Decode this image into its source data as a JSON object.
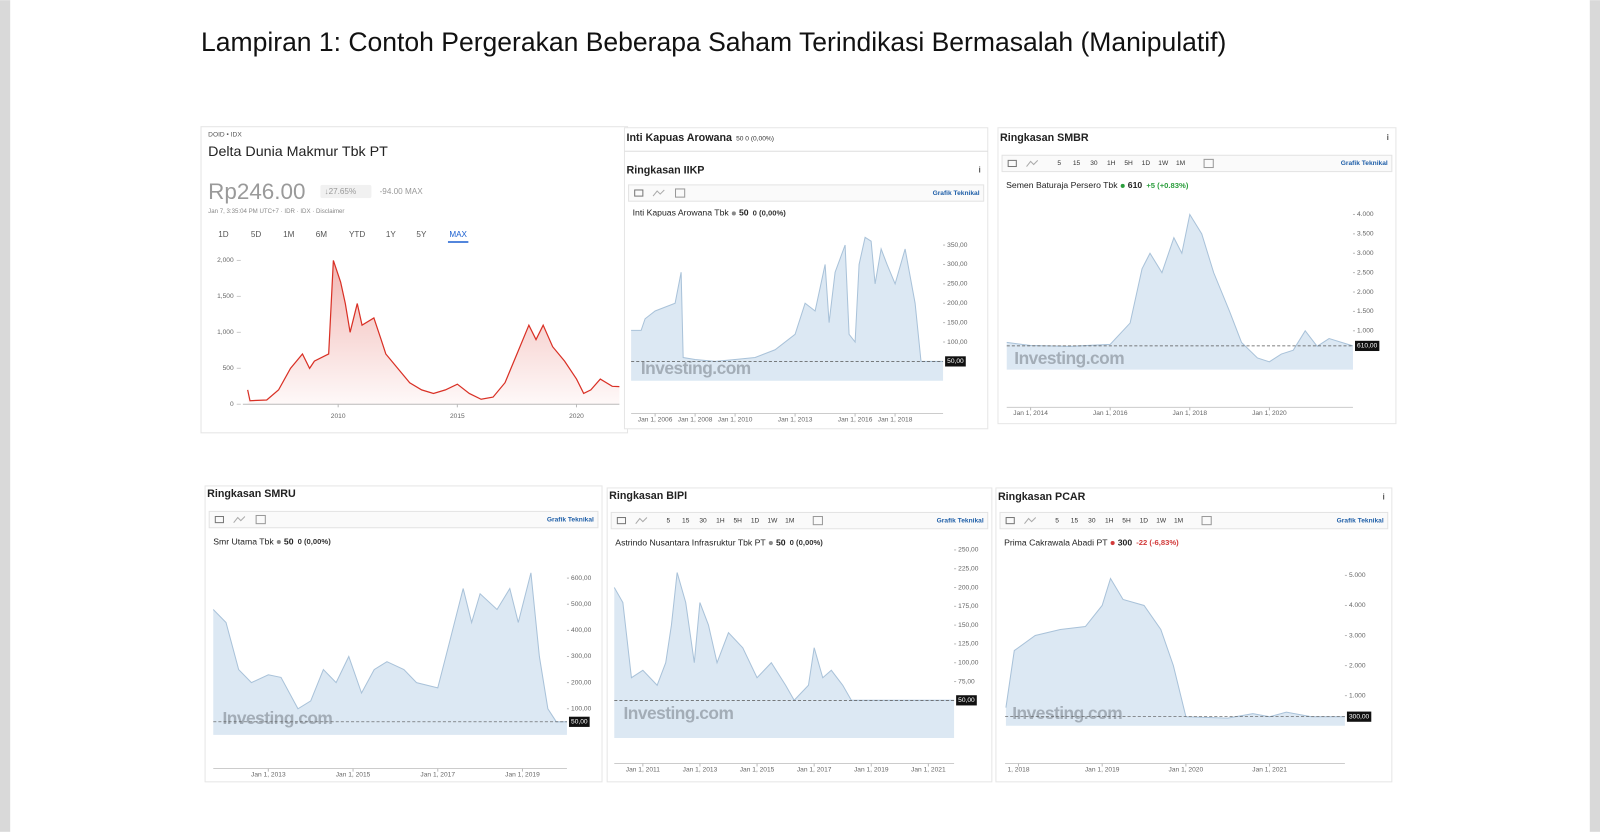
{
  "title": "Lampiran 1: Contoh Pergerakan Beberapa Saham Terindikasi Bermasalah (Manipulatif)",
  "chart_data": [
    {
      "type": "line",
      "exchange": "DOID • IDX",
      "name": "Delta Dunia Makmur Tbk PT",
      "price": "Rp246.00",
      "change": "↓27.65%",
      "change_abs": "-94.00 MAX",
      "meta": "Jan 7, 3:35:04 PM UTC+7 · IDR · IDX · Disclaimer",
      "ranges": [
        "1D",
        "5D",
        "1M",
        "6M",
        "YTD",
        "1Y",
        "5Y",
        "MAX"
      ],
      "selected_range": 7,
      "color": "#d93025",
      "x": [
        2006.2,
        2006.3,
        2007,
        2007.5,
        2008,
        2008.5,
        2008.8,
        2009,
        2009.6,
        2009.8,
        2010.1,
        2010.3,
        2010.5,
        2010.8,
        2011,
        2011.5,
        2011.8,
        2012,
        2012.5,
        2013,
        2013.5,
        2014,
        2014.5,
        2015,
        2015.5,
        2016,
        2016.5,
        2017,
        2017.5,
        2018,
        2018.3,
        2018.6,
        2019,
        2019.5,
        2020,
        2020.3,
        2020.6,
        2021,
        2021.5,
        2021.8
      ],
      "values": [
        200,
        50,
        60,
        200,
        500,
        700,
        500,
        600,
        700,
        2000,
        1700,
        1400,
        1000,
        1400,
        1100,
        1200,
        900,
        700,
        500,
        300,
        200,
        150,
        200,
        280,
        150,
        70,
        100,
        300,
        700,
        1100,
        900,
        1100,
        800,
        600,
        350,
        150,
        200,
        350,
        250,
        246
      ],
      "xlim": [
        2006,
        2021.8
      ],
      "ylim": [
        0,
        2100
      ],
      "xticks": [
        2010,
        2015,
        2020
      ],
      "yticks": [
        0,
        500,
        {
          "value": 1000,
          "label": "1,000"
        },
        {
          "value": 1500,
          "label": "1,500"
        },
        {
          "value": 2000,
          "label": "2,000"
        }
      ]
    },
    {
      "type": "area",
      "header": "Inti Kapuas Arowana",
      "header_quote": "50 0 (0,00%)",
      "title": "Ringkasan IIKP",
      "info": "i",
      "intervals": [],
      "tool_link": "Grafik Teknikal",
      "legend": "Inti Kapuas Arowana Tbk",
      "price": 50,
      "change": "0 (0,00%)",
      "change_color": "#333333",
      "watermark": "Investing.com",
      "color": "#a9c2d9",
      "x": [
        2004.8,
        2005.3,
        2005.5,
        2006,
        2007,
        2007.3,
        2007.4,
        2008,
        2009,
        2010,
        2011,
        2012,
        2013,
        2013.5,
        2014,
        2014.5,
        2014.7,
        2015,
        2015.5,
        2015.7,
        2016,
        2016.2,
        2016.5,
        2016.8,
        2017,
        2017.3,
        2017.6,
        2018,
        2018.5,
        2019,
        2019.3,
        2020.4
      ],
      "values": [
        130,
        130,
        160,
        180,
        200,
        280,
        60,
        55,
        50,
        55,
        60,
        80,
        120,
        200,
        180,
        300,
        150,
        280,
        350,
        120,
        100,
        300,
        370,
        360,
        250,
        340,
        300,
        250,
        340,
        200,
        50,
        50
      ],
      "last": {
        "value": 50,
        "label": "50,00"
      },
      "xlim": [
        2004.8,
        2020.4
      ],
      "ylim": [
        0,
        380
      ],
      "xticks": [
        {
          "value": 2006,
          "label": "Jan 1, 2006"
        },
        {
          "value": 2008,
          "label": "Jan 1, 2008"
        },
        {
          "value": 2010,
          "label": "Jan 1, 2010"
        },
        {
          "value": 2013,
          "label": "Jan 1, 2013"
        },
        {
          "value": 2016,
          "label": "Jan 1, 2016"
        },
        {
          "value": 2018,
          "label": "Jan 1, 2018"
        }
      ],
      "yticks": [
        {
          "value": 100,
          "label": "100,00"
        },
        {
          "value": 150,
          "label": "150,00"
        },
        {
          "value": 200,
          "label": "200,00"
        },
        {
          "value": 250,
          "label": "250,00"
        },
        {
          "value": 300,
          "label": "300,00"
        },
        {
          "value": 350,
          "label": "350,00"
        }
      ]
    },
    {
      "type": "area",
      "title": "Ringkasan SMBR",
      "info": "i",
      "intervals": [
        "5",
        "15",
        "30",
        "1H",
        "5H",
        "1D",
        "1W",
        "1M"
      ],
      "tool_link": "Grafik Teknikal",
      "legend": "Semen Baturaja Persero Tbk",
      "price": 610,
      "change": "+5 (+0.83%)",
      "change_color": "#2a9d3c",
      "watermark": "Investing.com",
      "color": "#a9c2d9",
      "x": [
        2013.4,
        2014,
        2015,
        2016,
        2016.5,
        2016.8,
        2017,
        2017.3,
        2017.6,
        2017.8,
        2018,
        2018.3,
        2018.6,
        2019,
        2019.3,
        2019.7,
        2020,
        2020.3,
        2020.6,
        2020.9,
        2021.2,
        2021.5,
        2022.1
      ],
      "values": [
        700,
        620,
        600,
        650,
        1200,
        2600,
        3000,
        2500,
        3400,
        3000,
        4000,
        3500,
        2500,
        1500,
        700,
        300,
        200,
        400,
        500,
        1000,
        600,
        800,
        610
      ],
      "last": {
        "value": 610,
        "label": "610,00"
      },
      "xlim": [
        2013.4,
        2022.1
      ],
      "ylim": [
        0,
        4500
      ],
      "xticks": [
        {
          "value": 2014,
          "label": "Jan 1, 2014"
        },
        {
          "value": 2016,
          "label": "Jan 1, 2016"
        },
        {
          "value": 2018,
          "label": "Jan 1, 2018"
        },
        {
          "value": 2020,
          "label": "Jan 1, 2020"
        }
      ],
      "yticks": [
        {
          "value": 1000,
          "label": "1.000"
        },
        {
          "value": 1500,
          "label": "1.500"
        },
        {
          "value": 2000,
          "label": "2.000"
        },
        {
          "value": 2500,
          "label": "2.500"
        },
        {
          "value": 3000,
          "label": "3.000"
        },
        {
          "value": 3500,
          "label": "3.500"
        },
        {
          "value": 4000,
          "label": "4.000"
        }
      ]
    },
    {
      "type": "area",
      "title": "Ringkasan SMRU",
      "intervals": [],
      "tool_link": "Grafik Teknikal",
      "legend": "Smr Utama Tbk",
      "price": 50,
      "change": "0 (0,00%)",
      "change_color": "#333333",
      "watermark": "Investing.com",
      "color": "#a9c2d9",
      "x": [
        2011.7,
        2012,
        2012.3,
        2012.6,
        2013,
        2013.3,
        2013.7,
        2014,
        2014.3,
        2014.6,
        2014.9,
        2015.2,
        2015.5,
        2015.8,
        2016.2,
        2016.5,
        2017,
        2017.3,
        2017.6,
        2017.8,
        2018,
        2018.4,
        2018.7,
        2018.9,
        2019.2,
        2019.4,
        2019.6,
        2019.8,
        2020.05
      ],
      "values": [
        480,
        430,
        250,
        200,
        230,
        220,
        100,
        130,
        250,
        200,
        300,
        160,
        250,
        280,
        250,
        200,
        180,
        370,
        560,
        430,
        540,
        480,
        560,
        430,
        620,
        300,
        100,
        50,
        50
      ],
      "last": {
        "value": 50,
        "label": "50,00"
      },
      "xlim": [
        2011.7,
        2020.05
      ],
      "ylim": [
        0,
        660
      ],
      "xticks": [
        {
          "value": 2013,
          "label": "Jan 1, 2013"
        },
        {
          "value": 2015,
          "label": "Jan 1, 2015"
        },
        {
          "value": 2017,
          "label": "Jan 1, 2017"
        },
        {
          "value": 2019,
          "label": "Jan 1, 2019"
        }
      ],
      "yticks": [
        {
          "value": 100,
          "label": "100,00"
        },
        {
          "value": 200,
          "label": "200,00"
        },
        {
          "value": 300,
          "label": "300,00"
        },
        {
          "value": 400,
          "label": "400,00"
        },
        {
          "value": 500,
          "label": "500,00"
        },
        {
          "value": 600,
          "label": "600,00"
        }
      ]
    },
    {
      "type": "area",
      "title": "Ringkasan BIPI",
      "intervals": [
        "5",
        "15",
        "30",
        "1H",
        "5H",
        "1D",
        "1W",
        "1M"
      ],
      "tool_link": "Grafik Teknikal",
      "legend": "Astrindo Nusantara Infrasruktur Tbk PT",
      "price": 50,
      "change": "0 (0,00%)",
      "change_color": "#333333",
      "watermark": "Investing.com",
      "color": "#a9c2d9",
      "x": [
        2010,
        2010.3,
        2010.6,
        2011,
        2011.5,
        2011.8,
        2012,
        2012.2,
        2012.5,
        2012.8,
        2013,
        2013.3,
        2013.6,
        2014,
        2014.5,
        2015,
        2015.5,
        2016,
        2016.3,
        2016.8,
        2017,
        2017.3,
        2017.6,
        2018,
        2018.3,
        2021.9
      ],
      "values": [
        200,
        180,
        80,
        90,
        70,
        100,
        150,
        220,
        180,
        100,
        180,
        150,
        100,
        140,
        120,
        80,
        100,
        70,
        50,
        70,
        120,
        80,
        90,
        70,
        50,
        50
      ],
      "last": {
        "value": 50,
        "label": "50,00"
      },
      "xlim": [
        2010,
        2021.9
      ],
      "ylim": [
        0,
        270
      ],
      "xticks": [
        {
          "value": 2011,
          "label": "Jan 1, 2011"
        },
        {
          "value": 2013,
          "label": "Jan 1, 2013"
        },
        {
          "value": 2015,
          "label": "Jan 1, 2015"
        },
        {
          "value": 2017,
          "label": "Jan 1, 2017"
        },
        {
          "value": 2019,
          "label": "Jan 1, 2019"
        },
        {
          "value": 2021,
          "label": "Jan 1, 2021"
        }
      ],
      "yticks": [
        {
          "value": 75,
          "label": "75,00"
        },
        {
          "value": 100,
          "label": "100,00"
        },
        {
          "value": 125,
          "label": "125,00"
        },
        {
          "value": 150,
          "label": "150,00"
        },
        {
          "value": 175,
          "label": "175,00"
        },
        {
          "value": 200,
          "label": "200,00"
        },
        {
          "value": 225,
          "label": "225,00"
        },
        {
          "value": 250,
          "label": "250,00"
        }
      ]
    },
    {
      "type": "area",
      "title": "Ringkasan PCAR",
      "info": "i",
      "intervals": [
        "5",
        "15",
        "30",
        "1H",
        "5H",
        "1D",
        "1W",
        "1M"
      ],
      "tool_link": "Grafik Teknikal",
      "legend": "Prima Cakrawala Abadi PT",
      "price": 300,
      "change": "-22 (-6,83%)",
      "change_color": "#d23b3b",
      "watermark": "Investing.com",
      "color": "#a9c2d9",
      "x": [
        2017.85,
        2017.95,
        2018.2,
        2018.5,
        2018.8,
        2019,
        2019.1,
        2019.25,
        2019.5,
        2019.7,
        2019.85,
        2020,
        2020.5,
        2020.8,
        2021,
        2021.2,
        2021.5,
        2021.9
      ],
      "values": [
        600,
        2500,
        3000,
        3200,
        3300,
        4000,
        4900,
        4200,
        4000,
        3200,
        2000,
        300,
        250,
        400,
        300,
        450,
        300,
        300
      ],
      "last": {
        "value": 300,
        "label": "300,00"
      },
      "xlim": [
        2017.84,
        2021.9
      ],
      "ylim": [
        0,
        5500
      ],
      "xticks": [
        {
          "value": 2018,
          "label": "1, 2018"
        },
        {
          "value": 2019,
          "label": "Jan 1, 2019"
        },
        {
          "value": 2020,
          "label": "Jan 1, 2020"
        },
        {
          "value": 2021,
          "label": "Jan 1, 2021"
        }
      ],
      "yticks": [
        {
          "value": 1000,
          "label": "1.000"
        },
        {
          "value": 2000,
          "label": "2.000"
        },
        {
          "value": 3000,
          "label": "3.000"
        },
        {
          "value": 4000,
          "label": "4.000"
        },
        {
          "value": 5000,
          "label": "5.000"
        }
      ]
    }
  ]
}
